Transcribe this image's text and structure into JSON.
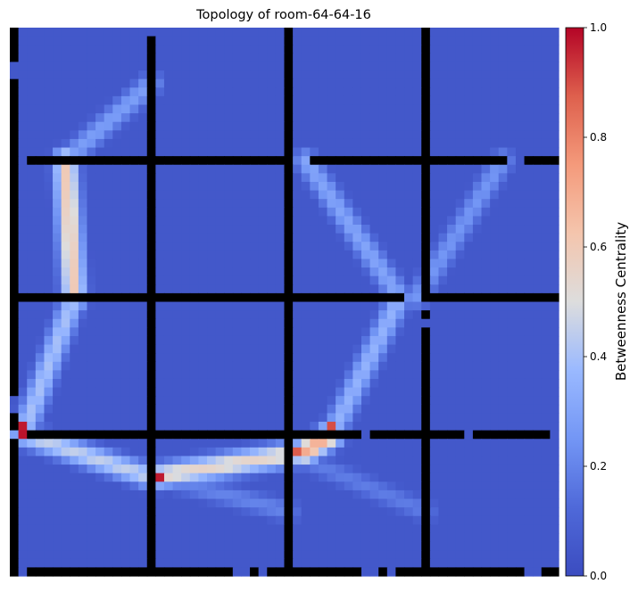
{
  "chart_data": {
    "type": "heatmap",
    "title": "Topology of room-64-64-16",
    "grid_size": [
      64,
      64
    ],
    "show_axes": false,
    "colormap": "coolwarm",
    "colorbar": {
      "label": "Betweenness Centrality",
      "range": [
        0.0,
        1.0
      ],
      "ticks": [
        "0.0",
        "0.2",
        "0.4",
        "0.6",
        "0.8",
        "1.0"
      ],
      "placement": "right"
    },
    "obstacle_color": "#000000",
    "obstacles": {
      "vertical_walls": [
        {
          "col": 0,
          "rows": [
            [
              0,
              3
            ],
            [
              6,
              19
            ],
            [
              20,
              28
            ],
            [
              29,
              42
            ],
            [
              45,
              46
            ],
            [
              48,
              63
            ]
          ]
        },
        {
          "col": 16,
          "rows": [
            [
              1,
              63
            ]
          ]
        },
        {
          "col": 32,
          "rows": [
            [
              0,
              63
            ]
          ]
        },
        {
          "col": 48,
          "rows": [
            [
              0,
              1
            ],
            [
              2,
              8
            ],
            [
              9,
              19
            ],
            [
              20,
              31
            ],
            [
              33,
              33
            ],
            [
              35,
              41
            ],
            [
              42,
              56
            ],
            [
              57,
              60
            ],
            [
              61,
              63
            ]
          ]
        }
      ],
      "horizontal_walls": [
        {
          "row": 15,
          "cols": [
            [
              2,
              31
            ],
            [
              35,
              57
            ],
            [
              60,
              63
            ]
          ]
        },
        {
          "row": 31,
          "cols": [
            [
              0,
              45
            ],
            [
              49,
              63
            ]
          ]
        },
        {
          "row": 47,
          "cols": [
            [
              2,
              40
            ],
            [
              42,
              52
            ],
            [
              54,
              62
            ]
          ]
        },
        {
          "row": 63,
          "cols": [
            [
              2,
              12
            ],
            [
              13,
              25
            ],
            [
              28,
              28
            ],
            [
              30,
              40
            ],
            [
              43,
              43
            ],
            [
              45,
              59
            ],
            [
              62,
              63
            ]
          ]
        }
      ]
    },
    "high_centrality_cells": [
      {
        "row": 47,
        "col": 1,
        "value": 0.98
      },
      {
        "row": 46,
        "col": 1,
        "value": 0.97
      },
      {
        "row": 47,
        "col": 37,
        "value": 0.97
      },
      {
        "row": 46,
        "col": 37,
        "value": 0.9
      },
      {
        "row": 49,
        "col": 32,
        "value": 0.92
      },
      {
        "row": 49,
        "col": 33,
        "value": 0.88
      },
      {
        "row": 52,
        "col": 16,
        "value": 0.97
      },
      {
        "row": 52,
        "col": 17,
        "value": 0.97
      },
      {
        "row": 31,
        "col": 7,
        "value": 0.8
      },
      {
        "row": 31,
        "col": 45,
        "value": 0.75
      },
      {
        "row": 31,
        "col": 48,
        "value": 0.5
      },
      {
        "row": 15,
        "col": 6,
        "value": 0.6
      }
    ],
    "corridors": [
      {
        "from": [
          15,
          6
        ],
        "to": [
          31,
          7
        ],
        "value": 0.6
      },
      {
        "from": [
          31,
          7
        ],
        "to": [
          47,
          1
        ],
        "value": 0.4
      },
      {
        "from": [
          47,
          1
        ],
        "to": [
          52,
          16
        ],
        "value": 0.45
      },
      {
        "from": [
          52,
          16
        ],
        "to": [
          49,
          34
        ],
        "value": 0.55
      },
      {
        "from": [
          49,
          34
        ],
        "to": [
          47,
          37
        ],
        "value": 0.7
      },
      {
        "from": [
          47,
          37
        ],
        "to": [
          31,
          45
        ],
        "value": 0.35
      },
      {
        "from": [
          31,
          45
        ],
        "to": [
          15,
          34
        ],
        "value": 0.3
      },
      {
        "from": [
          31,
          47
        ],
        "to": [
          15,
          57
        ],
        "value": 0.25
      },
      {
        "from": [
          15,
          6
        ],
        "to": [
          6,
          16
        ],
        "value": 0.28
      },
      {
        "from": [
          52,
          17
        ],
        "to": [
          56,
          32
        ],
        "value": 0.2
      },
      {
        "from": [
          50,
          34
        ],
        "to": [
          56,
          48
        ],
        "value": 0.18
      }
    ]
  }
}
